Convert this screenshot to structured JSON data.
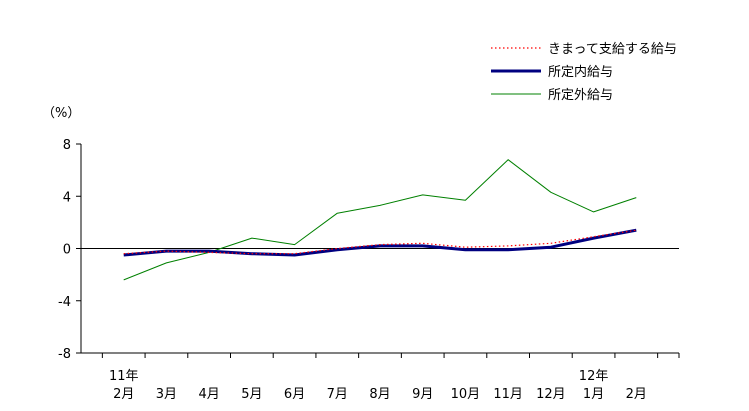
{
  "chart_data": {
    "type": "line",
    "ylabel": "（%）",
    "ylim": [
      -8,
      8
    ],
    "yticks": [
      "8",
      "4",
      "0",
      "-4",
      "-8"
    ],
    "grid": false,
    "legend_position": "top-right",
    "categories": [
      "2月",
      "3月",
      "4月",
      "5月",
      "6月",
      "7月",
      "8月",
      "9月",
      "10月",
      "11月",
      "12月",
      "1月",
      "2月"
    ],
    "year_labels": [
      {
        "index": 0,
        "label": "11年"
      },
      {
        "index": 11,
        "label": "12年"
      }
    ],
    "series": [
      {
        "name": "きまって支給する給与",
        "color": "#ff0000",
        "style": "dotted",
        "values": [
          -0.4,
          -0.2,
          -0.3,
          -0.4,
          -0.4,
          0.0,
          0.3,
          0.4,
          0.1,
          0.2,
          0.4,
          0.9,
          1.4
        ]
      },
      {
        "name": "所定内給与",
        "color": "#000080",
        "style": "solid-thick",
        "values": [
          -0.5,
          -0.2,
          -0.2,
          -0.4,
          -0.5,
          -0.1,
          0.2,
          0.2,
          -0.1,
          -0.1,
          0.1,
          0.8,
          1.4
        ]
      },
      {
        "name": "所定外給与",
        "color": "#008000",
        "style": "solid",
        "values": [
          -2.4,
          -1.1,
          -0.3,
          0.8,
          0.3,
          2.7,
          3.3,
          4.1,
          3.7,
          6.8,
          4.3,
          2.8,
          3.9
        ]
      }
    ]
  }
}
